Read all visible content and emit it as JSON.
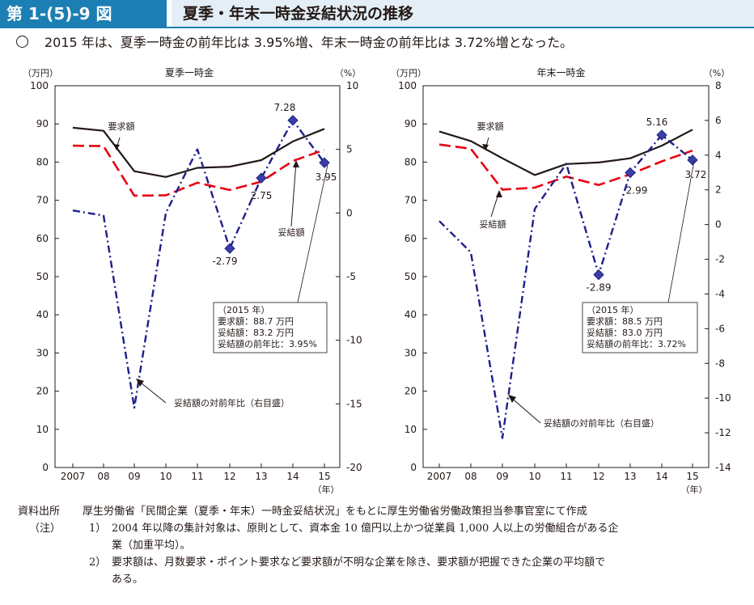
{
  "header": {
    "figure_number": "第 1-(5)-9 図",
    "title": "夏季・年末一時金妥結状況の推移"
  },
  "summary": "2015 年は、夏季一時金の前年比は 3.95%増、年末一時金の前年比は 3.72%増となった。",
  "colors": {
    "header_blue": "#1b7fb3",
    "header_light": "#e3eef6",
    "demand_line": "#231815",
    "settled_line": "#e60012",
    "growth_line": "#1d2088",
    "marker": "#3a3fa6"
  },
  "chart_data": [
    {
      "type": "line",
      "title": "夏季一時金",
      "left_unit": "（万円）",
      "right_unit": "（%）",
      "x_unit": "（年）",
      "categories": [
        "2007",
        "08",
        "09",
        "10",
        "11",
        "12",
        "13",
        "14",
        "15"
      ],
      "ylim": [
        0,
        100
      ],
      "yticks": [
        0,
        10,
        20,
        30,
        40,
        50,
        60,
        70,
        80,
        90,
        100
      ],
      "y2lim": [
        -20,
        10
      ],
      "y2ticks": [
        -20,
        -15,
        -10,
        -5,
        0,
        5,
        10
      ],
      "series": [
        {
          "name": "要求額",
          "axis": "left",
          "style": "solid",
          "values": [
            89.0,
            88.2,
            77.6,
            76.1,
            78.5,
            78.8,
            80.5,
            85.4,
            88.7
          ]
        },
        {
          "name": "妥結額",
          "axis": "left",
          "style": "dashed",
          "values": [
            84.3,
            84.2,
            71.2,
            71.3,
            74.6,
            72.7,
            74.9,
            80.3,
            83.2
          ]
        },
        {
          "name": "妥結額の対前年比（右目盛）",
          "axis": "right",
          "style": "dashdot",
          "values": [
            0.2,
            -0.2,
            -15.3,
            0.0,
            5.0,
            -2.79,
            2.75,
            7.28,
            3.95
          ]
        }
      ],
      "marked_points": [
        {
          "index": 5,
          "value": -2.79,
          "label": "-2.79"
        },
        {
          "index": 6,
          "value": 2.75,
          "label": "2.75"
        },
        {
          "index": 7,
          "value": 7.28,
          "label": "7.28"
        },
        {
          "index": 8,
          "value": 3.95,
          "label": "3.95"
        }
      ],
      "annotations": {
        "demand": "要求額",
        "settled": "妥結額",
        "growth": "妥結額の対前年比（右目盛）"
      },
      "infobox": [
        "（2015 年）",
        "要求額：88.7 万円",
        "妥結額：83.2 万円",
        "妥結額の前年比：3.95%"
      ]
    },
    {
      "type": "line",
      "title": "年末一時金",
      "left_unit": "（万円）",
      "right_unit": "（%）",
      "x_unit": "（年）",
      "categories": [
        "2007",
        "08",
        "09",
        "10",
        "11",
        "12",
        "13",
        "14",
        "15"
      ],
      "ylim": [
        0,
        100
      ],
      "yticks": [
        0,
        10,
        20,
        30,
        40,
        50,
        60,
        70,
        80,
        90,
        100
      ],
      "y2lim": [
        -14,
        8
      ],
      "y2ticks": [
        -14,
        -12,
        -10,
        -8,
        -6,
        -4,
        -2,
        0,
        2,
        4,
        6,
        8
      ],
      "series": [
        {
          "name": "要求額",
          "axis": "left",
          "style": "solid",
          "values": [
            88.0,
            85.5,
            81.0,
            76.6,
            79.5,
            79.9,
            81.0,
            84.3,
            88.5
          ]
        },
        {
          "name": "妥結額",
          "axis": "left",
          "style": "dashed",
          "values": [
            84.6,
            83.5,
            72.8,
            73.3,
            76.2,
            74.0,
            76.8,
            80.2,
            83.0
          ]
        },
        {
          "name": "妥結額の対前年比（右目盛）",
          "axis": "right",
          "style": "dashdot",
          "values": [
            0.2,
            -1.6,
            -12.3,
            0.9,
            3.5,
            -2.89,
            2.99,
            5.16,
            3.72
          ]
        }
      ],
      "marked_points": [
        {
          "index": 5,
          "value": -2.89,
          "label": "-2.89"
        },
        {
          "index": 6,
          "value": 2.99,
          "label": "2.99"
        },
        {
          "index": 7,
          "value": 5.16,
          "label": "5.16"
        },
        {
          "index": 8,
          "value": 3.72,
          "label": "3.72"
        }
      ],
      "annotations": {
        "demand": "要求額",
        "settled": "妥結額",
        "growth": "妥結額の対前年比（右目盛）"
      },
      "infobox": [
        "（2015 年）",
        "要求額：88.5 万円",
        "妥結額：83.0 万円",
        "妥結額の前年比：3.72%"
      ]
    }
  ],
  "notes": {
    "source_label": "資料出所",
    "source_text": "厚生労働省「民間企業（夏季・年末）一時金妥結状況」をもとに厚生労働省労働政策担当参事官室にて作成",
    "notes_label": "（注）",
    "items": [
      {
        "num": "1）",
        "lines": [
          "2004 年以降の集計対象は、原則として、資本金 10 億円以上かつ従業員 1,000 人以上の労働組合がある企",
          "業（加重平均）。"
        ]
      },
      {
        "num": "2）",
        "lines": [
          "要求額は、月数要求・ポイント要求など要求額が不明な企業を除き、要求額が把握できた企業の平均額で",
          "ある。"
        ]
      }
    ]
  }
}
